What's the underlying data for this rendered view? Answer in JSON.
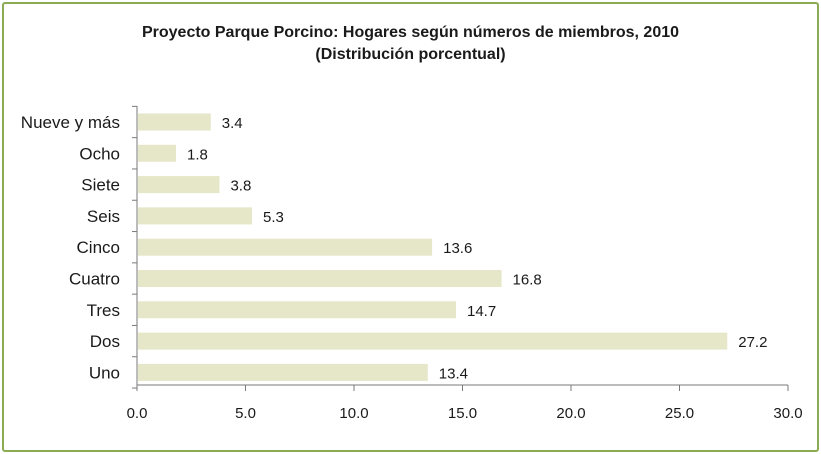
{
  "chart_data": {
    "type": "bar",
    "orientation": "horizontal",
    "title": "Proyecto Parque Porcino: Hogares según números de miembros, 2010",
    "subtitle": "(Distribución porcentual)",
    "categories": [
      "Nueve y más",
      "Ocho",
      "Siete",
      "Seis",
      "Cinco",
      "Cuatro",
      "Tres",
      "Dos",
      "Uno"
    ],
    "values": [
      3.4,
      1.8,
      3.8,
      5.3,
      13.6,
      16.8,
      14.7,
      27.2,
      13.4
    ],
    "value_labels": [
      "3.4",
      "1.8",
      "3.8",
      "5.3",
      "13.6",
      "16.8",
      "14.7",
      "27.2",
      "13.4"
    ],
    "xlim": [
      0,
      30
    ],
    "ticks": [
      0,
      5,
      10,
      15,
      20,
      25,
      30
    ],
    "tick_labels": [
      "0.0",
      "5.0",
      "10.0",
      "15.0",
      "20.0",
      "25.0",
      "30.0"
    ],
    "bar_color": "#e6e6c8",
    "border_color": "#8cab55",
    "grid": false,
    "legend": "none"
  }
}
